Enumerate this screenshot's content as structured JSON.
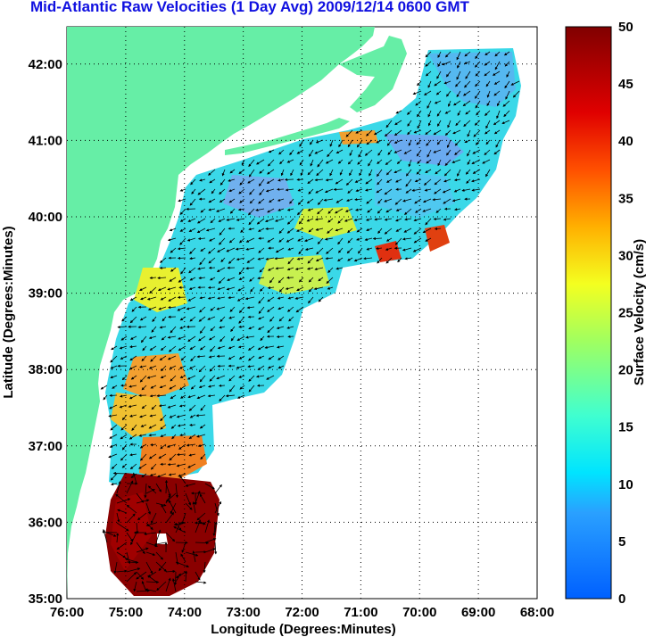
{
  "title": "Mid-Atlantic Raw Velocities (1 Day Avg) 2009/12/14 0600 GMT",
  "map": {
    "xlabel": "Longitude (Degrees:Minutes)",
    "ylabel": "Latitude (Degrees:Minutes)",
    "lon_ticks": [
      "76:00",
      "75:00",
      "74:00",
      "73:00",
      "72:00",
      "71:00",
      "70:00",
      "69:00",
      "68:00"
    ],
    "lat_ticks": [
      "35:00",
      "36:00",
      "37:00",
      "38:00",
      "39:00",
      "40:00",
      "41:00",
      "42:00"
    ],
    "land_color": "#66eea6",
    "water_color": "#ffffff",
    "grid": "dotted"
  },
  "colorbar": {
    "label": "Surface Velocity (cm/s)",
    "ticks": [
      "0",
      "5",
      "10",
      "15",
      "20",
      "25",
      "30",
      "35",
      "40",
      "45",
      "50"
    ],
    "range": [
      0,
      50
    ],
    "colors": [
      "#0000c8",
      "#0060ff",
      "#00c8ff",
      "#40ffd0",
      "#c0ff40",
      "#ffd000",
      "#ff6000",
      "#e00000",
      "#800000"
    ]
  }
}
